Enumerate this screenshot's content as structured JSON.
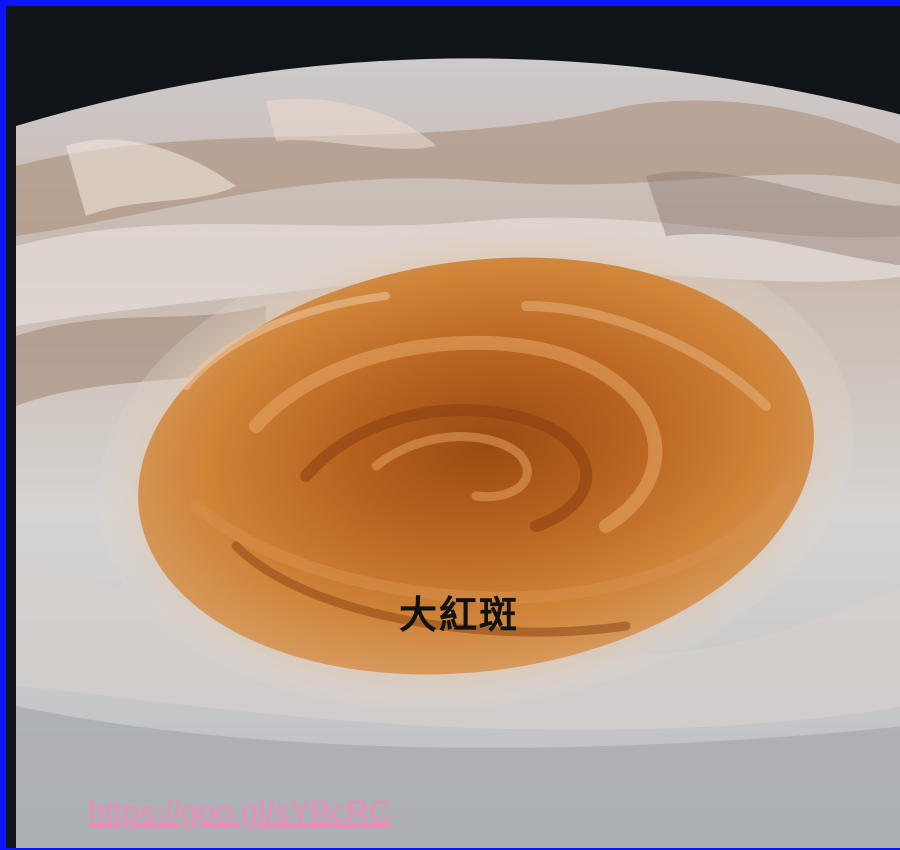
{
  "image": {
    "subject": "Great Red Spot of Jupiter",
    "caption": "大紅斑",
    "source_link": "https://goo.gl/sYBcRC"
  },
  "colors": {
    "border": "#0a14ff",
    "space": "#101317",
    "clouds_light": "#d8d8dc",
    "clouds_warm": "#c9a48a",
    "spot_outer": "#c97a34",
    "spot_core": "#a85418",
    "link": "#f08ab8"
  }
}
